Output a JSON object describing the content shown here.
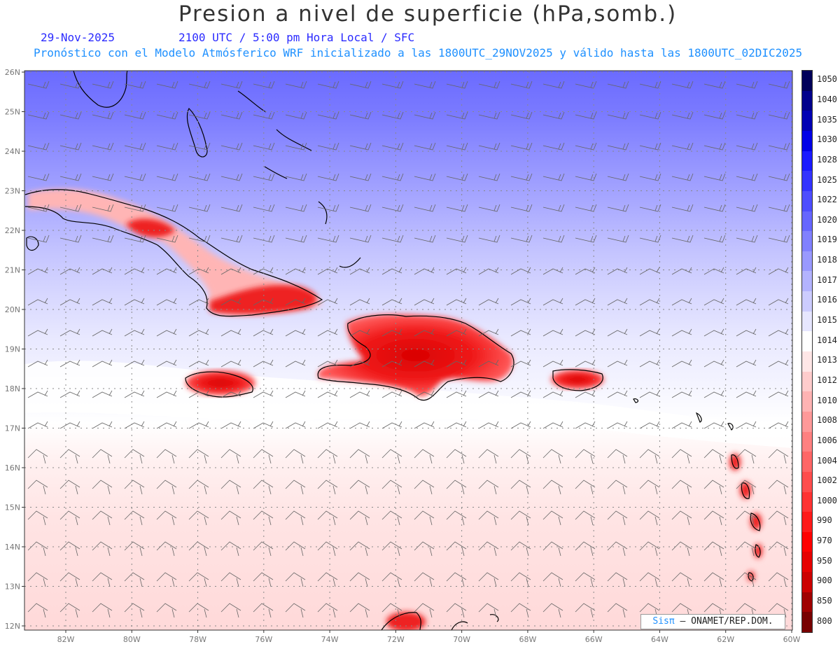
{
  "header": {
    "title": "Presion a nivel de superficie (hPa,somb.)",
    "date": "29-Nov-2025",
    "time_line": "2100 UTC / 5:00 pm Hora Local / SFC",
    "forecast_line": "Pronóstico con el Modelo Atmósferico WRF inicializado a las 1800UTC_29NOV2025 y válido hasta las  1800UTC_02DIC2025"
  },
  "axes": {
    "lat_labels": [
      "26N",
      "25N",
      "24N",
      "23N",
      "22N",
      "21N",
      "20N",
      "19N",
      "18N",
      "17N",
      "16N",
      "15N",
      "14N",
      "13N",
      "12N"
    ],
    "lon_labels": [
      "82W",
      "80W",
      "78W",
      "76W",
      "74W",
      "72W",
      "70W",
      "68W",
      "66W",
      "64W",
      "62W",
      "60W"
    ]
  },
  "legend": {
    "levels": [
      {
        "label": "1050",
        "color": "#00005a"
      },
      {
        "label": "1040",
        "color": "#00008c"
      },
      {
        "label": "1035",
        "color": "#0000b4"
      },
      {
        "label": "1030",
        "color": "#0000e6"
      },
      {
        "label": "1028",
        "color": "#1a1aff"
      },
      {
        "label": "1025",
        "color": "#3333ff"
      },
      {
        "label": "1022",
        "color": "#4d4dff"
      },
      {
        "label": "1020",
        "color": "#6666ff"
      },
      {
        "label": "1019",
        "color": "#8080ff"
      },
      {
        "label": "1018",
        "color": "#9999ff"
      },
      {
        "label": "1017",
        "color": "#b3b3ff"
      },
      {
        "label": "1016",
        "color": "#ccccff"
      },
      {
        "label": "1015",
        "color": "#e6e6ff"
      },
      {
        "label": "1014",
        "color": "#ffffff"
      },
      {
        "label": "1013",
        "color": "#ffe6e6"
      },
      {
        "label": "1012",
        "color": "#ffcccc"
      },
      {
        "label": "1010",
        "color": "#ffb3b3"
      },
      {
        "label": "1008",
        "color": "#ff9999"
      },
      {
        "label": "1006",
        "color": "#ff8080"
      },
      {
        "label": "1004",
        "color": "#ff6666"
      },
      {
        "label": "1002",
        "color": "#ff4d4d"
      },
      {
        "label": "1000",
        "color": "#ff3333"
      },
      {
        "label": "990",
        "color": "#ff1a1a"
      },
      {
        "label": "970",
        "color": "#ff0000"
      },
      {
        "label": "950",
        "color": "#e60000"
      },
      {
        "label": "900",
        "color": "#cc0000"
      },
      {
        "label": "850",
        "color": "#a00000"
      },
      {
        "label": "800",
        "color": "#780000"
      }
    ]
  },
  "credit": {
    "brand": "Sisπ",
    "org": " – ONAMET/REP.DOM."
  }
}
